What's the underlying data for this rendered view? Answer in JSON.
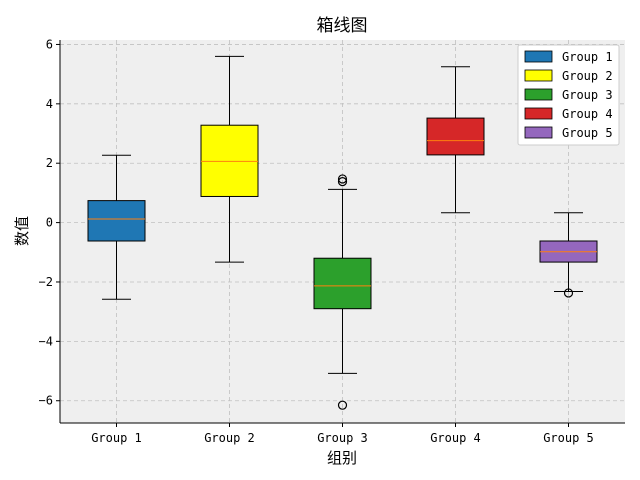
{
  "chart_data": {
    "type": "box",
    "title": "箱线图",
    "xlabel": "组别",
    "ylabel": "数值",
    "ylim": [
      -6.75,
      6.15
    ],
    "yticks": [
      6,
      4,
      2,
      0,
      -2,
      -4,
      -6
    ],
    "ytick_labels": [
      "6",
      "4",
      "2",
      "0",
      "−2",
      "−4",
      "−6"
    ],
    "grid": true,
    "legend_position": "top-right",
    "categories": [
      "Group 1",
      "Group 2",
      "Group 3",
      "Group 4",
      "Group 5"
    ],
    "series": [
      {
        "name": "Group 1",
        "color": "#1f77b4",
        "whisker_low": -2.58,
        "q1": -0.62,
        "median": 0.12,
        "q3": 0.74,
        "whisker_high": 2.27,
        "outliers": []
      },
      {
        "name": "Group 2",
        "color": "#ffff00",
        "whisker_low": -1.33,
        "q1": 0.88,
        "median": 2.06,
        "q3": 3.28,
        "whisker_high": 5.6,
        "outliers": []
      },
      {
        "name": "Group 3",
        "color": "#2ca02c",
        "whisker_low": -5.08,
        "q1": -2.9,
        "median": -2.13,
        "q3": -1.2,
        "whisker_high": 1.12,
        "outliers": [
          1.38,
          1.47,
          -6.15
        ]
      },
      {
        "name": "Group 4",
        "color": "#d62728",
        "whisker_low": 0.33,
        "q1": 2.28,
        "median": 2.76,
        "q3": 3.52,
        "whisker_high": 5.25,
        "outliers": []
      },
      {
        "name": "Group 5",
        "color": "#9467bd",
        "whisker_low": -2.32,
        "q1": -1.33,
        "median": -0.98,
        "q3": -0.62,
        "whisker_high": 0.33,
        "outliers": [
          -2.37
        ]
      }
    ],
    "median_color": "#ff7f0e",
    "plot_background": "#efefef"
  }
}
